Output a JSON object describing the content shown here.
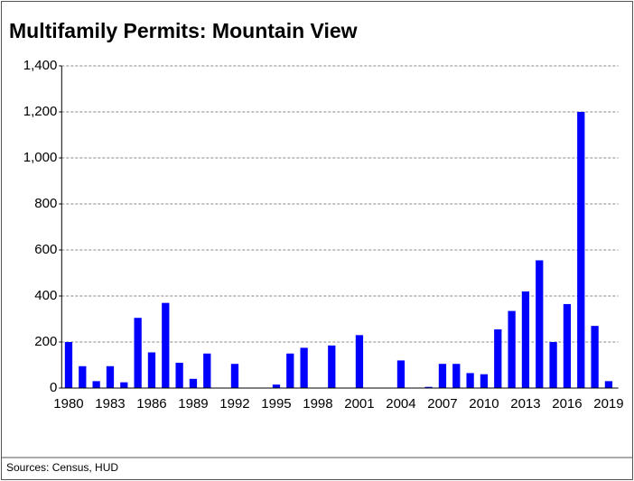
{
  "chart_data": {
    "type": "bar",
    "title": "Multifamily Permits: Mountain View",
    "source": "Sources: Census, HUD",
    "categories": [
      "1980",
      null,
      null,
      "1983",
      null,
      null,
      "1986",
      null,
      null,
      "1989",
      null,
      null,
      "1992",
      null,
      null,
      "1995",
      null,
      null,
      "1998",
      null,
      null,
      "2001",
      null,
      null,
      "2004",
      null,
      null,
      "2007",
      null,
      null,
      "2010",
      null,
      null,
      "2013",
      null,
      null,
      "2016",
      null,
      null,
      "2019"
    ],
    "values": [
      200,
      95,
      30,
      95,
      25,
      305,
      155,
      370,
      110,
      40,
      150,
      0,
      105,
      0,
      0,
      15,
      150,
      175,
      0,
      185,
      0,
      230,
      0,
      0,
      120,
      0,
      5,
      105,
      105,
      65,
      60,
      255,
      335,
      420,
      555,
      200,
      365,
      1200,
      270,
      30
    ],
    "color": "#0000ff",
    "ylim": [
      0,
      1400
    ],
    "yticks": [
      0,
      200,
      400,
      600,
      800,
      {
        "value": 1000,
        "label": "1,000"
      },
      {
        "value": 1200,
        "label": "1,200"
      },
      {
        "value": 1400,
        "label": "1,400"
      }
    ],
    "grid": true
  }
}
